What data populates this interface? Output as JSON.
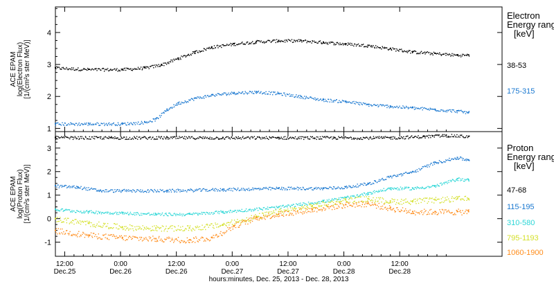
{
  "chart_data": [
    {
      "type": "scatter",
      "panel": "electron",
      "ylabel_lines": [
        "ACE EPAM",
        "log(Electron Flux)",
        "[1/(cm²s ster MeV)]"
      ],
      "ylim": [
        0.9,
        4.8
      ],
      "yticks": [
        1,
        2,
        3,
        4
      ],
      "legend_title": [
        "Electron",
        "Energy range",
        "[keV]"
      ],
      "series": [
        {
          "name": "38-53",
          "color": "#000000",
          "x": [
            0,
            0.3,
            0.6,
            0.8,
            0.95,
            1.1,
            1.25,
            1.4,
            1.6,
            1.8,
            2.0,
            2.2,
            2.4,
            2.6,
            2.8,
            3.0,
            3.2,
            3.4,
            3.6,
            3.7
          ],
          "y": [
            2.9,
            2.85,
            2.85,
            2.9,
            3.0,
            3.2,
            3.4,
            3.55,
            3.65,
            3.72,
            3.75,
            3.75,
            3.7,
            3.65,
            3.6,
            3.5,
            3.4,
            3.35,
            3.3,
            3.3
          ]
        },
        {
          "name": "175-315",
          "color": "#1a78d0",
          "x": [
            0,
            0.3,
            0.6,
            0.8,
            0.9,
            1.0,
            1.1,
            1.25,
            1.4,
            1.6,
            1.8,
            2.0,
            2.2,
            2.4,
            2.6,
            2.8,
            3.0,
            3.2,
            3.4,
            3.6,
            3.7
          ],
          "y": [
            1.15,
            1.15,
            1.15,
            1.2,
            1.3,
            1.6,
            1.8,
            1.95,
            2.05,
            2.12,
            2.15,
            2.1,
            2.0,
            1.9,
            1.85,
            1.75,
            1.7,
            1.65,
            1.6,
            1.55,
            1.5
          ]
        }
      ]
    },
    {
      "type": "scatter",
      "panel": "proton",
      "ylabel_lines": [
        "ACE EPAM",
        "log(Proton Flux)",
        "[1/(cm²s ster MeV)]"
      ],
      "ylim": [
        -1.6,
        3.7
      ],
      "yticks": [
        -1,
        0,
        1,
        2,
        3
      ],
      "legend_title": [
        "Proton",
        "Energy range",
        "[keV]"
      ],
      "series": [
        {
          "name": "47-68",
          "color": "#000000",
          "x": [
            0,
            0.5,
            1.0,
            1.5,
            2.0,
            2.5,
            3.0,
            3.3,
            3.5,
            3.7
          ],
          "y": [
            3.45,
            3.45,
            3.45,
            3.45,
            3.45,
            3.45,
            3.45,
            3.5,
            3.55,
            3.5
          ]
        },
        {
          "name": "115-195",
          "color": "#1a78d0",
          "x": [
            0,
            0.2,
            0.4,
            0.6,
            1.0,
            1.5,
            2.0,
            2.4,
            2.6,
            2.8,
            3.0,
            3.2,
            3.4,
            3.6,
            3.7
          ],
          "y": [
            1.4,
            1.35,
            1.2,
            1.2,
            1.2,
            1.25,
            1.3,
            1.3,
            1.35,
            1.5,
            1.8,
            2.0,
            2.4,
            2.6,
            2.5
          ]
        },
        {
          "name": "310-580",
          "color": "#2ad6d6",
          "x": [
            0,
            0.3,
            0.6,
            0.9,
            1.2,
            1.5,
            2.0,
            2.4,
            2.6,
            2.8,
            3.0,
            3.2,
            3.4,
            3.6,
            3.7
          ],
          "y": [
            0.4,
            0.3,
            0.25,
            0.2,
            0.2,
            0.3,
            0.5,
            0.75,
            0.9,
            1.1,
            1.3,
            1.3,
            1.4,
            1.7,
            1.65
          ]
        },
        {
          "name": "795-1193",
          "color": "#d4e02a",
          "x": [
            0,
            0.3,
            0.6,
            0.9,
            1.2,
            1.5,
            1.8,
            2.0,
            2.3,
            2.6,
            2.8,
            3.0,
            3.2,
            3.4,
            3.6,
            3.7
          ],
          "y": [
            0.0,
            -0.2,
            -0.35,
            -0.4,
            -0.4,
            -0.25,
            0.1,
            0.3,
            0.55,
            0.8,
            0.85,
            0.75,
            0.75,
            0.8,
            0.85,
            0.85
          ]
        },
        {
          "name": "1060-1900",
          "color": "#ff8c1a",
          "x": [
            0,
            0.3,
            0.6,
            0.9,
            1.2,
            1.4,
            1.6,
            1.8,
            2.0,
            2.3,
            2.6,
            2.8,
            3.0,
            3.2,
            3.4,
            3.6,
            3.7
          ],
          "y": [
            -0.5,
            -0.7,
            -0.8,
            -0.85,
            -0.9,
            -0.8,
            -0.3,
            0.05,
            0.2,
            0.4,
            0.6,
            0.65,
            0.45,
            0.3,
            0.3,
            0.3,
            0.3
          ]
        }
      ]
    }
  ],
  "x_axis": {
    "xlim": [
      0,
      4.0
    ],
    "ticks": [
      {
        "x": 0.0833,
        "time": "12:00",
        "date": "Dec.25"
      },
      {
        "x": 0.5833,
        "time": "0:00",
        "date": "Dec.26"
      },
      {
        "x": 1.0833,
        "time": "12:00",
        "date": "Dec.26"
      },
      {
        "x": 1.5833,
        "time": "0:00",
        "date": "Dec.27"
      },
      {
        "x": 2.0833,
        "time": "12:00",
        "date": "Dec.27"
      },
      {
        "x": 2.5833,
        "time": "0:00",
        "date": "Dec.28"
      },
      {
        "x": 3.0833,
        "time": "12:00",
        "date": "Dec.28"
      }
    ],
    "xlabel": "hours:minutes, Dec. 25, 2013 - Dec. 28, 2013"
  }
}
